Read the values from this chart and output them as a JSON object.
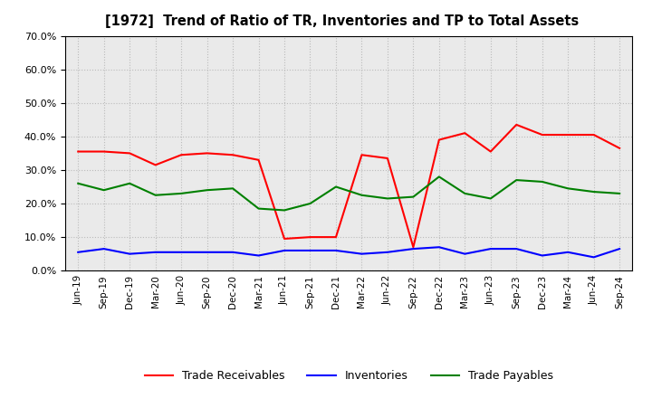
{
  "title": "[1972]  Trend of Ratio of TR, Inventories and TP to Total Assets",
  "x_labels": [
    "Jun-19",
    "Sep-19",
    "Dec-19",
    "Mar-20",
    "Jun-20",
    "Sep-20",
    "Dec-20",
    "Mar-21",
    "Jun-21",
    "Sep-21",
    "Dec-21",
    "Mar-22",
    "Jun-22",
    "Sep-22",
    "Dec-22",
    "Mar-23",
    "Jun-23",
    "Sep-23",
    "Dec-23",
    "Mar-24",
    "Jun-24",
    "Sep-24"
  ],
  "trade_receivables": [
    35.5,
    35.5,
    35.0,
    31.5,
    34.5,
    35.0,
    34.5,
    33.0,
    9.5,
    10.0,
    10.0,
    34.5,
    33.5,
    7.0,
    39.0,
    41.0,
    35.5,
    43.5,
    40.5,
    40.5,
    40.5,
    36.5
  ],
  "inventories": [
    5.5,
    6.5,
    5.0,
    5.5,
    5.5,
    5.5,
    5.5,
    4.5,
    6.0,
    6.0,
    6.0,
    5.0,
    5.5,
    6.5,
    7.0,
    5.0,
    6.5,
    6.5,
    4.5,
    5.5,
    4.0,
    6.5
  ],
  "trade_payables": [
    26.0,
    24.0,
    26.0,
    22.5,
    23.0,
    24.0,
    24.5,
    18.5,
    18.0,
    20.0,
    25.0,
    22.5,
    21.5,
    22.0,
    28.0,
    23.0,
    21.5,
    27.0,
    26.5,
    24.5,
    23.5,
    23.0
  ],
  "ylim": [
    0.0,
    70.0
  ],
  "yticks": [
    0.0,
    10.0,
    20.0,
    30.0,
    40.0,
    50.0,
    60.0,
    70.0
  ],
  "colors": {
    "trade_receivables": "#FF0000",
    "inventories": "#0000FF",
    "trade_payables": "#008000"
  },
  "legend_labels": [
    "Trade Receivables",
    "Inventories",
    "Trade Payables"
  ],
  "background_color": "#FFFFFF",
  "plot_bg_color": "#EAEAEA",
  "grid_color": "#BBBBBB"
}
